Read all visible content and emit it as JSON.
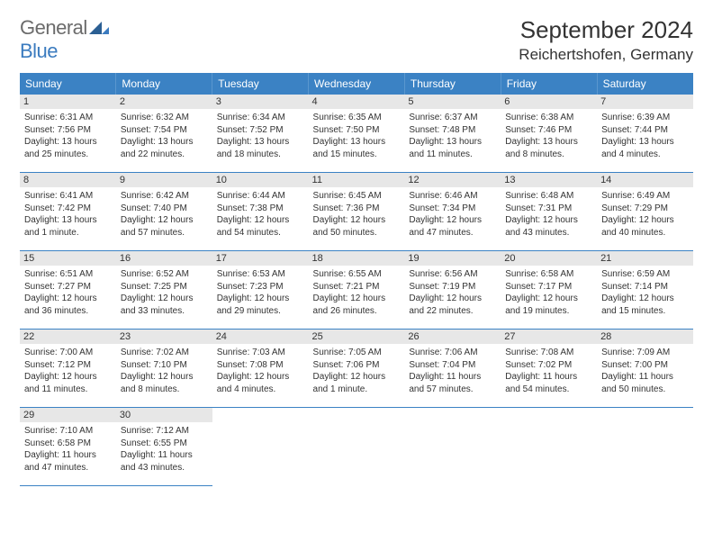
{
  "logo": {
    "word1": "General",
    "word2": "Blue"
  },
  "title": "September 2024",
  "location": "Reichertshofen, Germany",
  "colors": {
    "header_bg": "#3b82c4",
    "header_text": "#ffffff",
    "daynum_bg": "#e7e7e7",
    "row_border": "#3b82c4",
    "logo_gray": "#6b6b6b",
    "logo_blue": "#3b7bbf"
  },
  "day_headers": [
    "Sunday",
    "Monday",
    "Tuesday",
    "Wednesday",
    "Thursday",
    "Friday",
    "Saturday"
  ],
  "weeks": [
    [
      {
        "n": "1",
        "sunrise": "6:31 AM",
        "sunset": "7:56 PM",
        "dl": "13 hours and 25 minutes."
      },
      {
        "n": "2",
        "sunrise": "6:32 AM",
        "sunset": "7:54 PM",
        "dl": "13 hours and 22 minutes."
      },
      {
        "n": "3",
        "sunrise": "6:34 AM",
        "sunset": "7:52 PM",
        "dl": "13 hours and 18 minutes."
      },
      {
        "n": "4",
        "sunrise": "6:35 AM",
        "sunset": "7:50 PM",
        "dl": "13 hours and 15 minutes."
      },
      {
        "n": "5",
        "sunrise": "6:37 AM",
        "sunset": "7:48 PM",
        "dl": "13 hours and 11 minutes."
      },
      {
        "n": "6",
        "sunrise": "6:38 AM",
        "sunset": "7:46 PM",
        "dl": "13 hours and 8 minutes."
      },
      {
        "n": "7",
        "sunrise": "6:39 AM",
        "sunset": "7:44 PM",
        "dl": "13 hours and 4 minutes."
      }
    ],
    [
      {
        "n": "8",
        "sunrise": "6:41 AM",
        "sunset": "7:42 PM",
        "dl": "13 hours and 1 minute."
      },
      {
        "n": "9",
        "sunrise": "6:42 AM",
        "sunset": "7:40 PM",
        "dl": "12 hours and 57 minutes."
      },
      {
        "n": "10",
        "sunrise": "6:44 AM",
        "sunset": "7:38 PM",
        "dl": "12 hours and 54 minutes."
      },
      {
        "n": "11",
        "sunrise": "6:45 AM",
        "sunset": "7:36 PM",
        "dl": "12 hours and 50 minutes."
      },
      {
        "n": "12",
        "sunrise": "6:46 AM",
        "sunset": "7:34 PM",
        "dl": "12 hours and 47 minutes."
      },
      {
        "n": "13",
        "sunrise": "6:48 AM",
        "sunset": "7:31 PM",
        "dl": "12 hours and 43 minutes."
      },
      {
        "n": "14",
        "sunrise": "6:49 AM",
        "sunset": "7:29 PM",
        "dl": "12 hours and 40 minutes."
      }
    ],
    [
      {
        "n": "15",
        "sunrise": "6:51 AM",
        "sunset": "7:27 PM",
        "dl": "12 hours and 36 minutes."
      },
      {
        "n": "16",
        "sunrise": "6:52 AM",
        "sunset": "7:25 PM",
        "dl": "12 hours and 33 minutes."
      },
      {
        "n": "17",
        "sunrise": "6:53 AM",
        "sunset": "7:23 PM",
        "dl": "12 hours and 29 minutes."
      },
      {
        "n": "18",
        "sunrise": "6:55 AM",
        "sunset": "7:21 PM",
        "dl": "12 hours and 26 minutes."
      },
      {
        "n": "19",
        "sunrise": "6:56 AM",
        "sunset": "7:19 PM",
        "dl": "12 hours and 22 minutes."
      },
      {
        "n": "20",
        "sunrise": "6:58 AM",
        "sunset": "7:17 PM",
        "dl": "12 hours and 19 minutes."
      },
      {
        "n": "21",
        "sunrise": "6:59 AM",
        "sunset": "7:14 PM",
        "dl": "12 hours and 15 minutes."
      }
    ],
    [
      {
        "n": "22",
        "sunrise": "7:00 AM",
        "sunset": "7:12 PM",
        "dl": "12 hours and 11 minutes."
      },
      {
        "n": "23",
        "sunrise": "7:02 AM",
        "sunset": "7:10 PM",
        "dl": "12 hours and 8 minutes."
      },
      {
        "n": "24",
        "sunrise": "7:03 AM",
        "sunset": "7:08 PM",
        "dl": "12 hours and 4 minutes."
      },
      {
        "n": "25",
        "sunrise": "7:05 AM",
        "sunset": "7:06 PM",
        "dl": "12 hours and 1 minute."
      },
      {
        "n": "26",
        "sunrise": "7:06 AM",
        "sunset": "7:04 PM",
        "dl": "11 hours and 57 minutes."
      },
      {
        "n": "27",
        "sunrise": "7:08 AM",
        "sunset": "7:02 PM",
        "dl": "11 hours and 54 minutes."
      },
      {
        "n": "28",
        "sunrise": "7:09 AM",
        "sunset": "7:00 PM",
        "dl": "11 hours and 50 minutes."
      }
    ],
    [
      {
        "n": "29",
        "sunrise": "7:10 AM",
        "sunset": "6:58 PM",
        "dl": "11 hours and 47 minutes."
      },
      {
        "n": "30",
        "sunrise": "7:12 AM",
        "sunset": "6:55 PM",
        "dl": "11 hours and 43 minutes."
      },
      null,
      null,
      null,
      null,
      null
    ]
  ],
  "labels": {
    "sunrise": "Sunrise: ",
    "sunset": "Sunset: ",
    "daylight": "Daylight: "
  }
}
